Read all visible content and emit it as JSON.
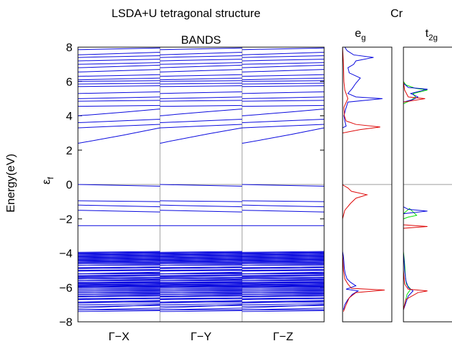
{
  "figure": {
    "title": "LSDA+U tetragonal structure",
    "element_label": "Cr"
  },
  "chart_data": [
    {
      "type": "line",
      "name": "band-structure",
      "title": "BANDS",
      "ylabel": "Energy(eV)",
      "fermi_label": "ε",
      "fermi_sub": "f",
      "ylim": [
        -8,
        8
      ],
      "yticks": [
        -8,
        -6,
        -4,
        -2,
        0,
        2,
        4,
        6,
        8
      ],
      "ytick_labels": [
        "−8",
        "−6",
        "−4",
        "−2",
        "0",
        "2",
        "4",
        "6",
        "8"
      ],
      "x_segments": [
        "Γ−X",
        "Γ−Y",
        "Γ−Z"
      ],
      "line_color": "#0000dd",
      "separator_color": "#999999",
      "fermi_color": "#999999",
      "seg_start": [
        [
          -7.4,
          -7.2,
          -6.9,
          -6.7,
          -6.5,
          -6.4,
          -6.3,
          -6.2,
          -6.1,
          -6.0,
          -5.9,
          -5.85,
          -5.75,
          -5.6,
          -5.5,
          -5.4,
          -5.2,
          -5.0,
          -4.85,
          -4.7,
          -4.55,
          -4.45,
          -4.35,
          -4.25,
          -4.15,
          -4.05,
          -3.95
        ],
        [
          -7.3,
          -7.1,
          -6.85,
          -6.7,
          -6.55,
          -6.4,
          -6.3,
          -6.2,
          -6.1,
          -6.0,
          -5.95,
          -5.85,
          -5.7,
          -5.6,
          -5.5,
          -5.35,
          -5.2,
          -5.05,
          -4.9,
          -4.7,
          -4.6,
          -4.5,
          -4.4,
          -4.3,
          -4.2,
          -4.1,
          -4.0
        ],
        [
          -7.3,
          -7.0,
          -6.85,
          -6.65,
          -6.5,
          -6.4,
          -6.3,
          -6.2,
          -6.1,
          -6.0,
          -5.9,
          -5.8,
          -5.7,
          -5.6,
          -5.45,
          -5.3,
          -5.2,
          -5.0,
          -4.85,
          -4.7,
          -4.6,
          -4.5,
          -4.4,
          -4.3,
          -4.2,
          -4.1,
          -4.0
        ],
        [
          -2.4,
          -1.5,
          -1.2,
          -0.95,
          0.0
        ],
        [
          2.4,
          3.3,
          3.6,
          4.0,
          4.55,
          4.85,
          5.0,
          5.3,
          5.7,
          5.85,
          6.0,
          6.1,
          6.3,
          6.55,
          6.8,
          7.0,
          7.2,
          7.4,
          7.55,
          7.85,
          8.0
        ]
      ],
      "seg_end": [
        [
          -7.35,
          -7.0,
          -6.8,
          -6.6,
          -6.45,
          -6.35,
          -6.25,
          -6.15,
          -6.05,
          -5.95,
          -5.9,
          -5.8,
          -5.7,
          -5.55,
          -5.45,
          -5.3,
          -5.15,
          -5.0,
          -4.8,
          -4.65,
          -4.5,
          -4.4,
          -4.3,
          -4.2,
          -4.1,
          -4.0,
          -3.9
        ],
        [
          -7.3,
          -7.05,
          -6.85,
          -6.65,
          -6.5,
          -6.4,
          -6.3,
          -6.2,
          -6.1,
          -6.0,
          -5.9,
          -5.8,
          -5.7,
          -5.6,
          -5.45,
          -5.3,
          -5.2,
          -5.0,
          -4.85,
          -4.7,
          -4.6,
          -4.45,
          -4.35,
          -4.25,
          -4.15,
          -4.05,
          -3.95
        ],
        [
          -7.2,
          -6.95,
          -6.75,
          -6.6,
          -6.45,
          -6.35,
          -6.25,
          -6.15,
          -6.05,
          -5.95,
          -5.85,
          -5.75,
          -5.65,
          -5.5,
          -5.4,
          -5.25,
          -5.1,
          -4.95,
          -4.8,
          -4.65,
          -4.55,
          -4.45,
          -4.35,
          -4.25,
          -4.15,
          -4.05,
          -3.95
        ],
        [
          -2.4,
          -1.6,
          -1.3,
          -1.0,
          -0.1
        ],
        [
          3.3,
          3.5,
          3.8,
          4.4,
          4.6,
          4.9,
          5.1,
          5.4,
          5.75,
          5.9,
          6.05,
          6.2,
          6.4,
          6.7,
          6.95,
          7.1,
          7.3,
          7.5,
          7.7,
          7.95,
          8.0
        ]
      ]
    },
    {
      "type": "line",
      "name": "eg-dos",
      "title": "e",
      "title_sub": "g",
      "series_colors": [
        "#0000dd",
        "#dd0000"
      ],
      "dos_blue": [
        [
          -7.3,
          0.02
        ],
        [
          -7.0,
          0.05
        ],
        [
          -6.7,
          0.12
        ],
        [
          -6.4,
          0.22
        ],
        [
          -6.2,
          0.35
        ],
        [
          -6.1,
          0.08
        ],
        [
          -5.9,
          0.3
        ],
        [
          -5.7,
          0.18
        ],
        [
          -5.5,
          0.1
        ],
        [
          -5.2,
          0.06
        ],
        [
          -4.9,
          0.04
        ],
        [
          -4.5,
          0.03
        ],
        [
          -4.2,
          0.02
        ],
        [
          -3.9,
          0.0
        ],
        [
          -0.05,
          0.0
        ],
        [
          3.3,
          0.0
        ],
        [
          3.4,
          0.08
        ],
        [
          3.7,
          0.05
        ],
        [
          4.0,
          0.03
        ],
        [
          4.4,
          0.07
        ],
        [
          4.8,
          0.12
        ],
        [
          5.0,
          0.9
        ],
        [
          5.1,
          0.3
        ],
        [
          5.3,
          0.12
        ],
        [
          5.6,
          0.22
        ],
        [
          5.9,
          0.3
        ],
        [
          6.2,
          0.4
        ],
        [
          6.5,
          0.15
        ],
        [
          6.8,
          0.12
        ],
        [
          7.0,
          0.25
        ],
        [
          7.2,
          0.3
        ],
        [
          7.4,
          0.7
        ],
        [
          7.55,
          0.25
        ],
        [
          7.8,
          0.1
        ],
        [
          8.0,
          0.05
        ]
      ],
      "dos_red": [
        [
          -7.4,
          0.02
        ],
        [
          -7.0,
          0.08
        ],
        [
          -6.6,
          0.15
        ],
        [
          -6.3,
          0.3
        ],
        [
          -6.15,
          0.95
        ],
        [
          -6.05,
          0.2
        ],
        [
          -5.8,
          0.12
        ],
        [
          -5.5,
          0.05
        ],
        [
          -5.0,
          0.02
        ],
        [
          -4.0,
          0.0
        ],
        [
          -2.0,
          0.0
        ],
        [
          -1.5,
          0.05
        ],
        [
          -1.1,
          0.18
        ],
        [
          -0.8,
          0.3
        ],
        [
          -0.6,
          0.55
        ],
        [
          -0.4,
          0.2
        ],
        [
          -0.2,
          0.12
        ],
        [
          -0.05,
          0.02
        ],
        [
          0.0,
          0.0
        ],
        [
          3.0,
          0.0
        ],
        [
          3.2,
          0.4
        ],
        [
          3.35,
          0.85
        ],
        [
          3.5,
          0.3
        ],
        [
          3.7,
          0.08
        ],
        [
          4.0,
          0.04
        ],
        [
          4.5,
          0.03
        ],
        [
          5.0,
          0.12
        ],
        [
          5.5,
          0.05
        ],
        [
          6.0,
          0.03
        ],
        [
          7.0,
          0.02
        ],
        [
          8.0,
          0.0
        ]
      ]
    },
    {
      "type": "line",
      "name": "t2g-dos",
      "title": "t",
      "title_sub": "2g",
      "series_colors": [
        "#00dd00",
        "#0000dd",
        "#dd0000"
      ],
      "dos_green": [
        [
          -7.3,
          0.0
        ],
        [
          -6.8,
          0.08
        ],
        [
          -6.4,
          0.15
        ],
        [
          -6.1,
          0.3
        ],
        [
          -5.8,
          0.12
        ],
        [
          -5.3,
          0.08
        ],
        [
          -4.8,
          0.06
        ],
        [
          -4.3,
          0.03
        ],
        [
          -3.9,
          0.0
        ],
        [
          -1.7,
          0.0
        ],
        [
          -1.4,
          0.25
        ],
        [
          -1.6,
          0.4
        ],
        [
          -1.8,
          0.55
        ],
        [
          -1.9,
          0.2
        ],
        [
          -2.0,
          0.0
        ],
        [
          4.7,
          0.0
        ],
        [
          4.9,
          0.3
        ],
        [
          5.1,
          0.5
        ],
        [
          5.3,
          0.4
        ],
        [
          5.5,
          1.3
        ],
        [
          5.6,
          0.5
        ],
        [
          5.8,
          0.1
        ],
        [
          6.0,
          0.0
        ]
      ],
      "dos_blue": [
        [
          -7.3,
          0.0
        ],
        [
          -6.9,
          0.1
        ],
        [
          -6.5,
          0.2
        ],
        [
          -6.2,
          0.4
        ],
        [
          -6.0,
          0.2
        ],
        [
          -5.6,
          0.1
        ],
        [
          -5.0,
          0.05
        ],
        [
          -4.5,
          0.03
        ],
        [
          -4.0,
          0.0
        ],
        [
          -1.7,
          0.0
        ],
        [
          -1.55,
          1.5
        ],
        [
          -1.45,
          0.2
        ],
        [
          -1.3,
          0.0
        ],
        [
          4.8,
          0.0
        ],
        [
          4.95,
          0.4
        ],
        [
          5.1,
          0.6
        ],
        [
          5.3,
          0.3
        ],
        [
          5.55,
          1.5
        ],
        [
          5.65,
          0.2
        ],
        [
          5.9,
          0.0
        ]
      ],
      "dos_red": [
        [
          -7.3,
          0.0
        ],
        [
          -6.7,
          0.1
        ],
        [
          -6.3,
          0.6
        ],
        [
          -6.2,
          1.2
        ],
        [
          -6.1,
          0.2
        ],
        [
          -5.8,
          0.05
        ],
        [
          -5.0,
          0.0
        ],
        [
          -2.55,
          0.0
        ],
        [
          -2.45,
          1.5
        ],
        [
          -2.35,
          0.0
        ],
        [
          4.8,
          0.0
        ],
        [
          5.0,
          0.9
        ],
        [
          5.1,
          0.2
        ],
        [
          5.5,
          0.05
        ],
        [
          6.0,
          0.0
        ]
      ]
    }
  ]
}
